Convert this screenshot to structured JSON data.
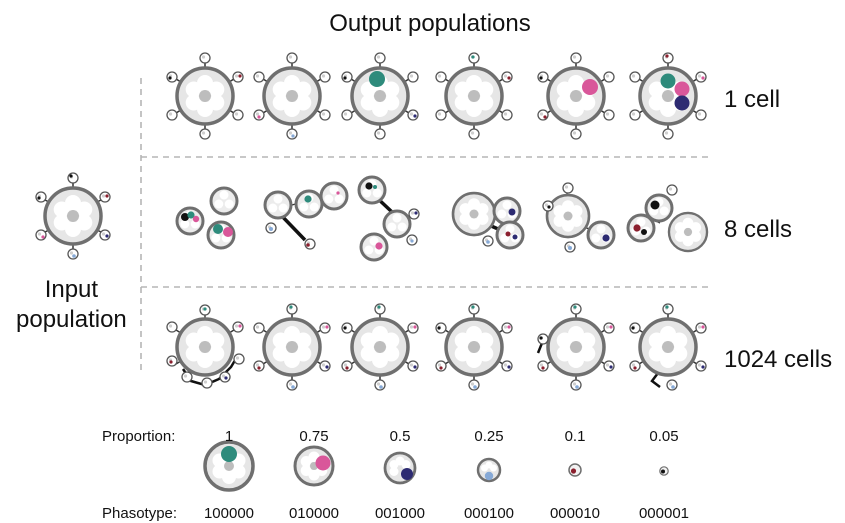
{
  "title": "Output populations",
  "input_label": [
    "Input",
    "population"
  ],
  "row_labels": [
    "1 cell",
    "8 cells",
    "1024 cells"
  ],
  "legend": {
    "proportion_label": "Proportion:",
    "phasotype_label": "Phasotype:",
    "proportions": [
      "1",
      "0.75",
      "0.5",
      "0.25",
      "0.1",
      "0.05"
    ],
    "phasotypes": [
      "100000",
      "010000",
      "001000",
      "000100",
      "000010",
      "000001"
    ]
  },
  "colors": {
    "phasotype_100000": "#2e8b7c",
    "phasotype_010000": "#d9579a",
    "phasotype_001000": "#2d2b72",
    "phasotype_000100": "#86a9d6",
    "phasotype_000010": "#8b1f2e",
    "phasotype_000001": "#111111",
    "cell_outline": "#6f6f6f",
    "cell_fill": "#e3e3e3",
    "divider": "#b5b5b5"
  }
}
